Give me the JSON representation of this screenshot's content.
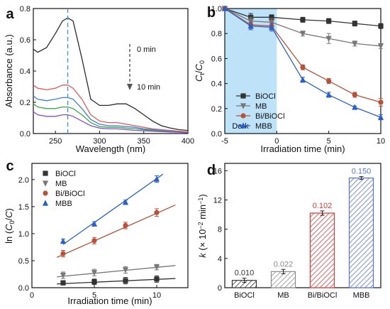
{
  "figure": {
    "panels": [
      "a",
      "b",
      "c",
      "d"
    ]
  },
  "chart_data": [
    {
      "panel": "a",
      "type": "line",
      "xlabel": "Wavelength (nm)",
      "ylabel": "Absorbance (a.u.)",
      "xlim": [
        225,
        400
      ],
      "ylim": [
        0,
        0.8
      ],
      "xticks": [
        250,
        300,
        350,
        400
      ],
      "yticks": [
        0.0,
        0.2,
        0.4,
        0.6,
        0.8
      ],
      "marker_line_x": 264,
      "annotations": [
        "0 min",
        "10 min"
      ],
      "series": [
        {
          "color": "#2b2b2b",
          "x": [
            225,
            230,
            240,
            250,
            258,
            264,
            270,
            280,
            290,
            300,
            310,
            320,
            330,
            340,
            350,
            360,
            370,
            380,
            390,
            400
          ],
          "y": [
            0.54,
            0.52,
            0.55,
            0.64,
            0.72,
            0.74,
            0.72,
            0.48,
            0.22,
            0.18,
            0.18,
            0.19,
            0.19,
            0.16,
            0.12,
            0.08,
            0.05,
            0.035,
            0.025,
            0.02
          ]
        },
        {
          "color": "#e05a5a",
          "x": [
            225,
            230,
            240,
            250,
            258,
            264,
            270,
            280,
            290,
            300,
            310,
            320,
            330,
            340,
            350,
            360,
            370,
            380,
            390,
            400
          ],
          "y": [
            0.31,
            0.29,
            0.28,
            0.29,
            0.31,
            0.31,
            0.29,
            0.22,
            0.12,
            0.08,
            0.07,
            0.07,
            0.06,
            0.05,
            0.04,
            0.03,
            0.025,
            0.02,
            0.015,
            0.01
          ]
        },
        {
          "color": "#3a7fd5",
          "x": [
            225,
            230,
            240,
            250,
            258,
            264,
            270,
            280,
            290,
            300,
            310,
            320,
            330,
            340,
            350,
            360,
            370,
            380,
            390,
            400
          ],
          "y": [
            0.24,
            0.22,
            0.21,
            0.22,
            0.23,
            0.23,
            0.22,
            0.16,
            0.09,
            0.06,
            0.05,
            0.05,
            0.045,
            0.04,
            0.03,
            0.025,
            0.02,
            0.015,
            0.01,
            0.008
          ]
        },
        {
          "color": "#3aa84a",
          "x": [
            225,
            230,
            240,
            250,
            258,
            264,
            270,
            280,
            290,
            300,
            310,
            320,
            330,
            340,
            350,
            360,
            370,
            380,
            390,
            400
          ],
          "y": [
            0.19,
            0.17,
            0.16,
            0.16,
            0.17,
            0.17,
            0.16,
            0.12,
            0.07,
            0.045,
            0.04,
            0.04,
            0.035,
            0.03,
            0.025,
            0.02,
            0.015,
            0.012,
            0.01,
            0.006
          ]
        },
        {
          "color": "#8a4fc4",
          "x": [
            225,
            230,
            240,
            250,
            258,
            264,
            270,
            280,
            290,
            300,
            310,
            320,
            330,
            340,
            350,
            360,
            370,
            380,
            390,
            400
          ],
          "y": [
            0.14,
            0.12,
            0.11,
            0.11,
            0.12,
            0.12,
            0.11,
            0.08,
            0.05,
            0.035,
            0.03,
            0.03,
            0.025,
            0.02,
            0.018,
            0.015,
            0.012,
            0.01,
            0.008,
            0.005
          ]
        }
      ]
    },
    {
      "panel": "b",
      "type": "line",
      "xlabel": "Irradiation time (min)",
      "ylabel": "Ct/C0",
      "xlim": [
        -5,
        10
      ],
      "ylim": [
        0,
        1.0
      ],
      "xticks": [
        -5,
        0,
        5,
        10
      ],
      "yticks": [
        0.0,
        0.2,
        0.4,
        0.6,
        0.8,
        1.0
      ],
      "shaded_region": {
        "x": [
          -5,
          0
        ],
        "label": "Dark",
        "color": "#a8d8f5"
      },
      "legend": "bottom-left",
      "series": [
        {
          "name": "BiOCl",
          "color": "#333333",
          "marker": "square",
          "x": [
            -5,
            -2.5,
            -0.5,
            2.5,
            5,
            7.5,
            10
          ],
          "y": [
            1.0,
            0.93,
            0.93,
            0.91,
            0.9,
            0.88,
            0.86
          ],
          "err": [
            0,
            0.03,
            0.02,
            0.02,
            0.02,
            0.02,
            0.02
          ]
        },
        {
          "name": "MB",
          "color": "#777777",
          "marker": "triangle-down",
          "x": [
            -5,
            -2.5,
            -0.5,
            2.5,
            5,
            7.5,
            10
          ],
          "y": [
            1.0,
            0.9,
            0.89,
            0.8,
            0.76,
            0.72,
            0.7
          ],
          "err": [
            0,
            0.03,
            0.03,
            0.02,
            0.04,
            0.02,
            0.02
          ]
        },
        {
          "name": "Bi/BiOCl",
          "color": "#b5523a",
          "marker": "circle",
          "x": [
            -5,
            -2.5,
            -0.5,
            2.5,
            5,
            7.5,
            10
          ],
          "y": [
            1.0,
            0.87,
            0.86,
            0.53,
            0.42,
            0.31,
            0.25
          ],
          "err": [
            0,
            0.03,
            0.03,
            0.02,
            0.02,
            0.02,
            0.03
          ]
        },
        {
          "name": "MBB",
          "color": "#2a5fc9",
          "marker": "triangle-up",
          "x": [
            -5,
            -2.5,
            -0.5,
            2.5,
            5,
            7.5,
            10
          ],
          "y": [
            1.0,
            0.86,
            0.85,
            0.43,
            0.31,
            0.21,
            0.13
          ],
          "err": [
            0,
            0.03,
            0.03,
            0.02,
            0.02,
            0.01,
            0.02
          ]
        }
      ]
    },
    {
      "panel": "c",
      "type": "scatter",
      "xlabel": "Irradiation time (min)",
      "ylabel": "ln (C0/C)",
      "xlim": [
        0,
        12.5
      ],
      "ylim": [
        0,
        2.3
      ],
      "xticks": [
        0,
        5,
        10
      ],
      "yticks": [
        0.0,
        0.5,
        1.0,
        1.5,
        2.0
      ],
      "legend": "top-left",
      "series": [
        {
          "name": "BiOCl",
          "color": "#333333",
          "marker": "square",
          "x": [
            2.5,
            5,
            7.5,
            10
          ],
          "y": [
            0.09,
            0.11,
            0.13,
            0.16
          ],
          "err": [
            0.04,
            0.05,
            0.06,
            0.06
          ],
          "fit_x": [
            2,
            11.5
          ],
          "fit_y": [
            0.07,
            0.17
          ]
        },
        {
          "name": "MB",
          "color": "#777777",
          "marker": "triangle-down",
          "x": [
            2.5,
            5,
            7.5,
            10
          ],
          "y": [
            0.23,
            0.28,
            0.33,
            0.38
          ],
          "err": [
            0.06,
            0.06,
            0.06,
            0.05
          ],
          "fit_x": [
            2,
            11.5
          ],
          "fit_y": [
            0.2,
            0.41
          ]
        },
        {
          "name": "Bi/BiOCl",
          "color": "#b5523a",
          "marker": "circle",
          "x": [
            2.5,
            5,
            7.5,
            10
          ],
          "y": [
            0.63,
            0.87,
            1.15,
            1.39
          ],
          "err": [
            0.06,
            0.06,
            0.06,
            0.07
          ],
          "fit_x": [
            2,
            11.5
          ],
          "fit_y": [
            0.56,
            1.53
          ]
        },
        {
          "name": "MBB",
          "color": "#2a5fc9",
          "marker": "triangle-up",
          "x": [
            2.5,
            5,
            7.5,
            10
          ],
          "y": [
            0.86,
            1.18,
            1.58,
            2.01
          ],
          "err": [
            0.04,
            0.04,
            0.04,
            0.06
          ],
          "fit_x": [
            2.5,
            10.5
          ],
          "fit_y": [
            0.8,
            2.1
          ]
        }
      ]
    },
    {
      "panel": "d",
      "type": "bar",
      "ylabel": "k (× 10^-2 min^-1)",
      "ylim": [
        0,
        17
      ],
      "yticks": [
        0,
        4,
        8,
        12,
        16
      ],
      "categories": [
        "BiOCl",
        "MB",
        "Bi/BiOCl",
        "MBB"
      ],
      "values": [
        1.0,
        2.2,
        10.2,
        15.0
      ],
      "err": [
        0.3,
        0.3,
        0.3,
        0.2
      ],
      "data_labels": [
        "0.010",
        "0.022",
        "0.102",
        "0.150"
      ],
      "colors": [
        "#333333",
        "#8a8a8a",
        "#d83a3a",
        "#5a72d8"
      ]
    }
  ]
}
